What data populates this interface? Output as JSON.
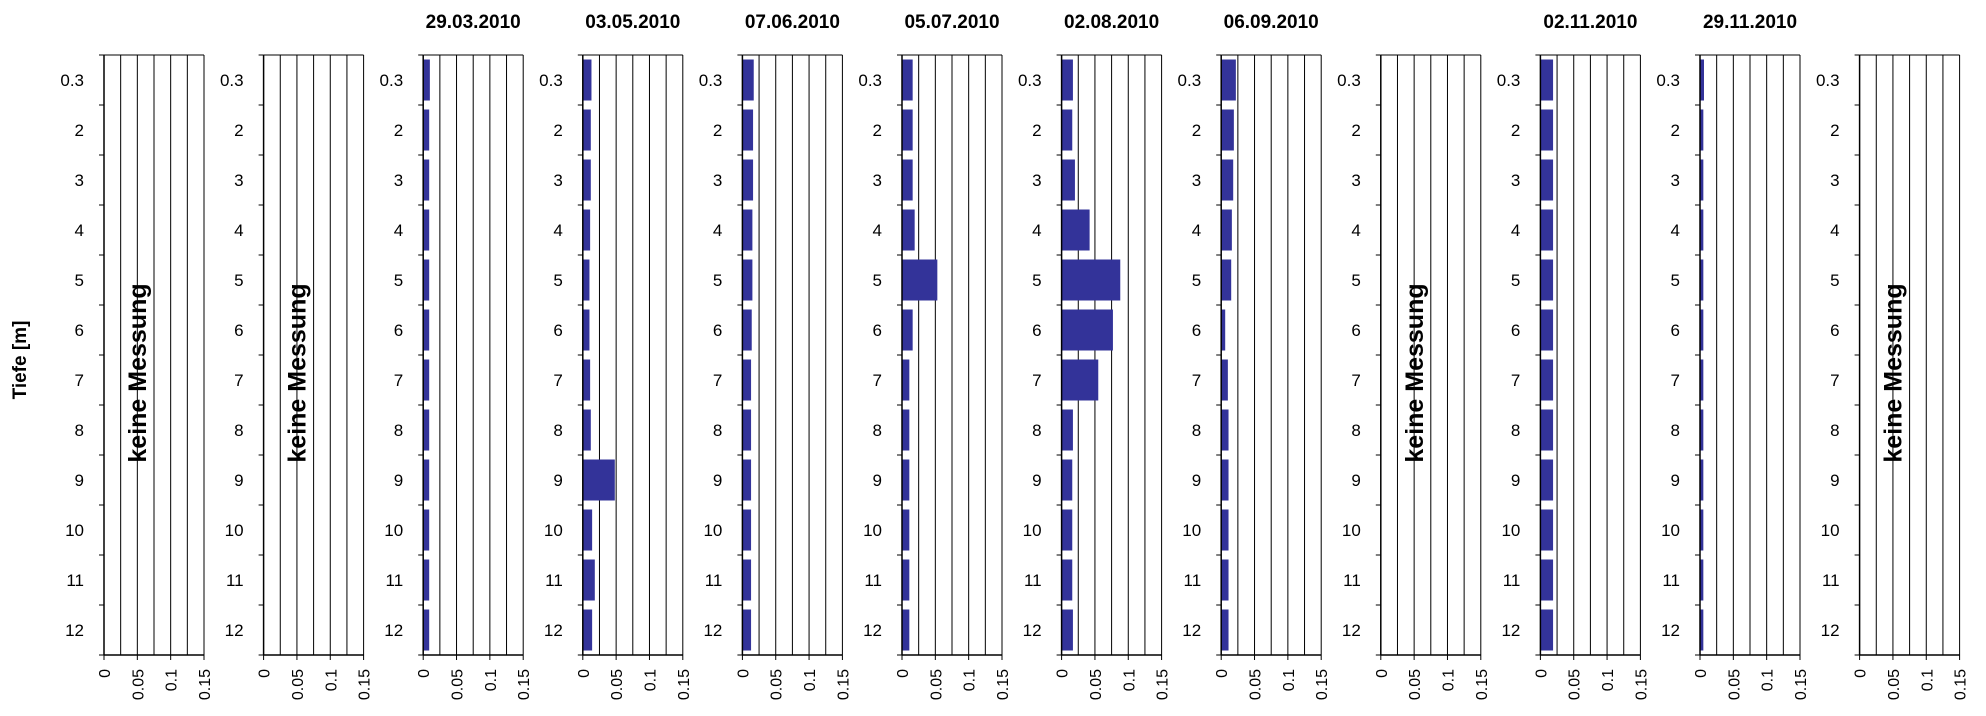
{
  "chart_data": {
    "type": "bar",
    "orientation": "horizontal",
    "ylabel": "Tiefe [m]",
    "categories": [
      "0.3",
      "2",
      "3",
      "4",
      "5",
      "6",
      "7",
      "8",
      "9",
      "10",
      "11",
      "12"
    ],
    "xlim": [
      0,
      0.15
    ],
    "xticks": [
      "0",
      "0.05",
      "0.1",
      "0.15"
    ],
    "grid": true,
    "bar_color": "#333399",
    "no_data_label": "keine Messung",
    "panels": [
      {
        "title": "",
        "no_data": true
      },
      {
        "title": "",
        "no_data": true
      },
      {
        "title": "29.03.2010",
        "values": [
          0.01,
          0.009,
          0.009,
          0.009,
          0.009,
          0.009,
          0.009,
          0.009,
          0.009,
          0.009,
          0.009,
          0.009
        ]
      },
      {
        "title": "03.05.2010",
        "values": [
          0.013,
          0.012,
          0.012,
          0.011,
          0.01,
          0.01,
          0.011,
          0.012,
          0.048,
          0.014,
          0.018,
          0.014
        ]
      },
      {
        "title": "07.06.2010",
        "values": [
          0.017,
          0.016,
          0.016,
          0.015,
          0.015,
          0.014,
          0.013,
          0.013,
          0.013,
          0.013,
          0.013,
          0.013
        ]
      },
      {
        "title": "05.07.2010",
        "values": [
          0.016,
          0.016,
          0.016,
          0.019,
          0.053,
          0.016,
          0.011,
          0.011,
          0.011,
          0.011,
          0.011,
          0.011
        ]
      },
      {
        "title": "02.08.2010",
        "values": [
          0.017,
          0.016,
          0.02,
          0.042,
          0.088,
          0.077,
          0.055,
          0.017,
          0.016,
          0.016,
          0.016,
          0.017
        ]
      },
      {
        "title": "06.09.2010",
        "values": [
          0.022,
          0.019,
          0.018,
          0.016,
          0.015,
          0.006,
          0.01,
          0.011,
          0.011,
          0.011,
          0.011,
          0.011
        ]
      },
      {
        "title": "",
        "no_data": true
      },
      {
        "title": "02.11.2010",
        "values": [
          0.019,
          0.019,
          0.019,
          0.019,
          0.019,
          0.019,
          0.019,
          0.019,
          0.019,
          0.019,
          0.019,
          0.019
        ]
      },
      {
        "title": "29.11.2010",
        "values": [
          0.006,
          0.005,
          0.005,
          0.005,
          0.005,
          0.005,
          0.005,
          0.005,
          0.005,
          0.005,
          0.005,
          0.005
        ]
      },
      {
        "title": "",
        "no_data": true
      }
    ]
  }
}
